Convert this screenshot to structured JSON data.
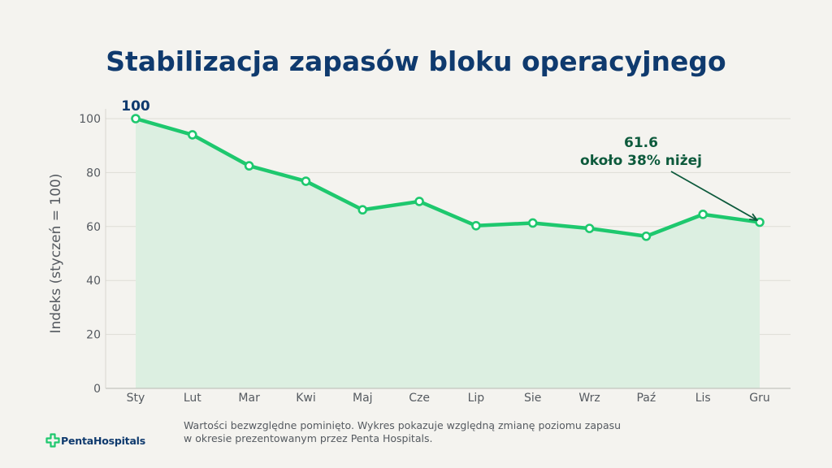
{
  "title": "Stabilizacja zapasów bloku operacyjnego",
  "footnote": {
    "line1": "Wartości bezwzględne pominięto. Wykres pokazuje względną zmianę poziomu zapasu",
    "line2": "w okresie prezentowanym przez Penta Hospitals."
  },
  "logo": {
    "text": "PentaHospitals",
    "icon": "cross-icon"
  },
  "colors": {
    "title": "#0f3a6e",
    "line": "#1ec86e",
    "area": "#dcefe1",
    "annotation": "#0d5a3c",
    "start_label": "#0f3a6e"
  },
  "chart_data": {
    "type": "line",
    "categories": [
      "Sty",
      "Lut",
      "Mar",
      "Kwi",
      "Maj",
      "Cze",
      "Lip",
      "Sie",
      "Wrz",
      "Paź",
      "Lis",
      "Gru"
    ],
    "values": [
      100,
      94,
      82.5,
      76.8,
      66.2,
      69.3,
      60.3,
      61.3,
      59.3,
      56.4,
      64.5,
      61.6
    ],
    "ylabel": "Indeks (styczeń = 100)",
    "ylim": [
      0,
      100
    ],
    "yticks": [
      0,
      20,
      40,
      60,
      80,
      100
    ],
    "grid": true,
    "area_fill": true,
    "start_label": "100",
    "end_annotation": {
      "value_text": "61.6",
      "note": "około 38% niżej"
    }
  }
}
